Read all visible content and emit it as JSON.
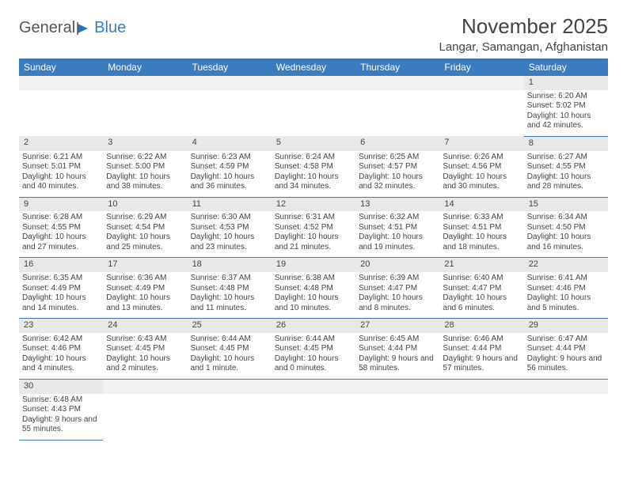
{
  "logo": {
    "text1": "General",
    "text2": "Blue",
    "flag_color": "#2f6fb3"
  },
  "title": "November 2025",
  "location": "Langar, Samangan, Afghanistan",
  "header_bg": "#3b7bbf",
  "daynum_bg": "#e8e8e8",
  "border_color": "#3b7bbf",
  "weekdays": [
    "Sunday",
    "Monday",
    "Tuesday",
    "Wednesday",
    "Thursday",
    "Friday",
    "Saturday"
  ],
  "weeks": [
    [
      null,
      null,
      null,
      null,
      null,
      null,
      {
        "n": "1",
        "sr": "6:20 AM",
        "ss": "5:02 PM",
        "dl": "10 hours and 42 minutes."
      }
    ],
    [
      {
        "n": "2",
        "sr": "6:21 AM",
        "ss": "5:01 PM",
        "dl": "10 hours and 40 minutes."
      },
      {
        "n": "3",
        "sr": "6:22 AM",
        "ss": "5:00 PM",
        "dl": "10 hours and 38 minutes."
      },
      {
        "n": "4",
        "sr": "6:23 AM",
        "ss": "4:59 PM",
        "dl": "10 hours and 36 minutes."
      },
      {
        "n": "5",
        "sr": "6:24 AM",
        "ss": "4:58 PM",
        "dl": "10 hours and 34 minutes."
      },
      {
        "n": "6",
        "sr": "6:25 AM",
        "ss": "4:57 PM",
        "dl": "10 hours and 32 minutes."
      },
      {
        "n": "7",
        "sr": "6:26 AM",
        "ss": "4:56 PM",
        "dl": "10 hours and 30 minutes."
      },
      {
        "n": "8",
        "sr": "6:27 AM",
        "ss": "4:55 PM",
        "dl": "10 hours and 28 minutes."
      }
    ],
    [
      {
        "n": "9",
        "sr": "6:28 AM",
        "ss": "4:55 PM",
        "dl": "10 hours and 27 minutes."
      },
      {
        "n": "10",
        "sr": "6:29 AM",
        "ss": "4:54 PM",
        "dl": "10 hours and 25 minutes."
      },
      {
        "n": "11",
        "sr": "6:30 AM",
        "ss": "4:53 PM",
        "dl": "10 hours and 23 minutes."
      },
      {
        "n": "12",
        "sr": "6:31 AM",
        "ss": "4:52 PM",
        "dl": "10 hours and 21 minutes."
      },
      {
        "n": "13",
        "sr": "6:32 AM",
        "ss": "4:51 PM",
        "dl": "10 hours and 19 minutes."
      },
      {
        "n": "14",
        "sr": "6:33 AM",
        "ss": "4:51 PM",
        "dl": "10 hours and 18 minutes."
      },
      {
        "n": "15",
        "sr": "6:34 AM",
        "ss": "4:50 PM",
        "dl": "10 hours and 16 minutes."
      }
    ],
    [
      {
        "n": "16",
        "sr": "6:35 AM",
        "ss": "4:49 PM",
        "dl": "10 hours and 14 minutes."
      },
      {
        "n": "17",
        "sr": "6:36 AM",
        "ss": "4:49 PM",
        "dl": "10 hours and 13 minutes."
      },
      {
        "n": "18",
        "sr": "6:37 AM",
        "ss": "4:48 PM",
        "dl": "10 hours and 11 minutes."
      },
      {
        "n": "19",
        "sr": "6:38 AM",
        "ss": "4:48 PM",
        "dl": "10 hours and 10 minutes."
      },
      {
        "n": "20",
        "sr": "6:39 AM",
        "ss": "4:47 PM",
        "dl": "10 hours and 8 minutes."
      },
      {
        "n": "21",
        "sr": "6:40 AM",
        "ss": "4:47 PM",
        "dl": "10 hours and 6 minutes."
      },
      {
        "n": "22",
        "sr": "6:41 AM",
        "ss": "4:46 PM",
        "dl": "10 hours and 5 minutes."
      }
    ],
    [
      {
        "n": "23",
        "sr": "6:42 AM",
        "ss": "4:46 PM",
        "dl": "10 hours and 4 minutes."
      },
      {
        "n": "24",
        "sr": "6:43 AM",
        "ss": "4:45 PM",
        "dl": "10 hours and 2 minutes."
      },
      {
        "n": "25",
        "sr": "6:44 AM",
        "ss": "4:45 PM",
        "dl": "10 hours and 1 minute."
      },
      {
        "n": "26",
        "sr": "6:44 AM",
        "ss": "4:45 PM",
        "dl": "10 hours and 0 minutes."
      },
      {
        "n": "27",
        "sr": "6:45 AM",
        "ss": "4:44 PM",
        "dl": "9 hours and 58 minutes."
      },
      {
        "n": "28",
        "sr": "6:46 AM",
        "ss": "4:44 PM",
        "dl": "9 hours and 57 minutes."
      },
      {
        "n": "29",
        "sr": "6:47 AM",
        "ss": "4:44 PM",
        "dl": "9 hours and 56 minutes."
      }
    ],
    [
      {
        "n": "30",
        "sr": "6:48 AM",
        "ss": "4:43 PM",
        "dl": "9 hours and 55 minutes."
      },
      null,
      null,
      null,
      null,
      null,
      null
    ]
  ],
  "labels": {
    "sunrise": "Sunrise: ",
    "sunset": "Sunset: ",
    "daylight": "Daylight: "
  }
}
